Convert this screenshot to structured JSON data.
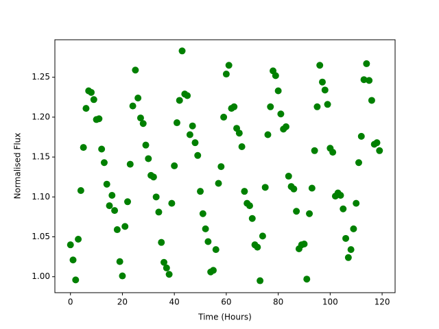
{
  "chart_data": {
    "type": "scatter",
    "x_label": "Time (Hours)",
    "y_label": "Normalised Flux",
    "color": "#008000",
    "xlim": [
      -6,
      125
    ],
    "ylim": [
      0.98,
      1.297
    ],
    "xticks": [
      0,
      20,
      40,
      60,
      80,
      100,
      120
    ],
    "yticks": [
      {
        "value": 1.0,
        "label": "1.00"
      },
      {
        "value": 1.05,
        "label": "1.05"
      },
      {
        "value": 1.1,
        "label": "1.10"
      },
      {
        "value": 1.15,
        "label": "1.15"
      },
      {
        "value": 1.2,
        "label": "1.20"
      },
      {
        "value": 1.25,
        "label": "1.25"
      }
    ],
    "grid": false,
    "x": [
      0,
      1,
      2,
      3,
      4,
      5,
      6,
      7,
      8,
      9,
      10,
      11,
      12,
      13,
      14,
      15,
      16,
      17,
      18,
      19,
      20,
      21,
      22,
      23,
      24,
      25,
      26,
      27,
      28,
      29,
      30,
      31,
      32,
      33,
      34,
      35,
      36,
      37,
      38,
      39,
      40,
      41,
      42,
      43,
      44,
      45,
      46,
      47,
      48,
      49,
      50,
      51,
      52,
      53,
      54,
      55,
      56,
      57,
      58,
      59,
      60,
      61,
      62,
      63,
      64,
      65,
      66,
      67,
      68,
      69,
      70,
      71,
      72,
      73,
      74,
      75,
      76,
      77,
      78,
      79,
      80,
      81,
      82,
      83,
      84,
      85,
      86,
      87,
      88,
      89,
      90,
      91,
      92,
      93,
      94,
      95,
      96,
      97,
      98,
      99,
      100,
      101,
      102,
      103,
      104,
      105,
      106,
      107,
      108,
      109,
      110,
      111,
      112,
      113,
      114,
      115,
      116,
      117,
      118,
      119
    ],
    "values": [
      1.04,
      1.021,
      0.996,
      1.047,
      1.108,
      1.162,
      1.211,
      1.233,
      1.231,
      1.222,
      1.197,
      1.198,
      1.16,
      1.143,
      1.116,
      1.089,
      1.102,
      1.083,
      1.059,
      1.019,
      1.001,
      1.063,
      1.094,
      1.141,
      1.214,
      1.259,
      1.224,
      1.199,
      1.192,
      1.165,
      1.148,
      1.127,
      1.125,
      1.1,
      1.081,
      1.043,
      1.018,
      1.011,
      1.003,
      1.092,
      1.139,
      1.193,
      1.221,
      1.283,
      1.229,
      1.227,
      1.178,
      1.189,
      1.168,
      1.152,
      1.107,
      1.079,
      1.06,
      1.044,
      1.006,
      1.008,
      1.034,
      1.117,
      1.138,
      1.2,
      1.254,
      1.265,
      1.211,
      1.213,
      1.186,
      1.18,
      1.163,
      1.107,
      1.092,
      1.089,
      1.073,
      1.04,
      1.037,
      0.995,
      1.051,
      1.112,
      1.178,
      1.213,
      1.258,
      1.252,
      1.233,
      1.204,
      1.185,
      1.188,
      1.126,
      1.113,
      1.11,
      1.082,
      1.035,
      1.04,
      1.041,
      0.997,
      1.079,
      1.111,
      1.158,
      1.213,
      1.265,
      1.244,
      1.234,
      1.216,
      1.161,
      1.156,
      1.101,
      1.105,
      1.102,
      1.085,
      1.048,
      1.024,
      1.034,
      1.06,
      1.092,
      1.143,
      1.176,
      1.247,
      1.267,
      1.246,
      1.221,
      1.166,
      1.168,
      1.158
    ]
  }
}
